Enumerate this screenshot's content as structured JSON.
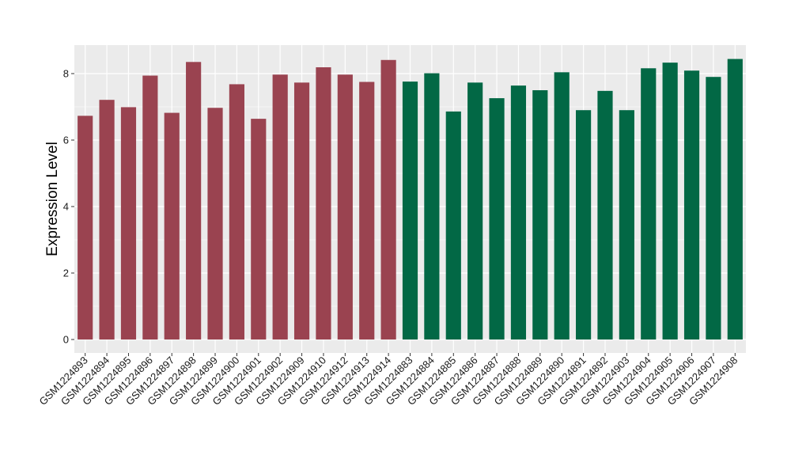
{
  "chart_data": {
    "type": "bar",
    "title": "",
    "xlabel": "",
    "ylabel": "Expression Level",
    "ylim": [
      0,
      8.8
    ],
    "yticks": [
      0,
      2,
      4,
      6,
      8
    ],
    "grid": true,
    "legend": "none",
    "colors": {
      "group1": "#9a4350",
      "group2": "#026845",
      "panel": "#ebebeb",
      "grid": "#ffffff"
    },
    "categories": [
      "GSM1224893",
      "GSM1224894",
      "GSM1224895",
      "GSM1224896",
      "GSM1224897",
      "GSM1224898",
      "GSM1224899",
      "GSM1224900",
      "GSM1224901",
      "GSM1224902",
      "GSM1224909",
      "GSM1224910",
      "GSM1224912",
      "GSM1224913",
      "GSM1224914",
      "GSM1224883",
      "GSM1224884",
      "GSM1224885",
      "GSM1224886",
      "GSM1224887",
      "GSM1224888",
      "GSM1224889",
      "GSM1224890",
      "GSM1224891",
      "GSM1224892",
      "GSM1224903",
      "GSM1224904",
      "GSM1224905",
      "GSM1224906",
      "GSM1224907",
      "GSM1224908"
    ],
    "values": [
      6.73,
      7.21,
      6.99,
      7.94,
      6.82,
      8.35,
      6.97,
      7.68,
      6.64,
      7.97,
      7.73,
      8.19,
      7.97,
      7.75,
      8.41,
      7.76,
      8.01,
      6.86,
      7.73,
      7.26,
      7.64,
      7.5,
      8.04,
      6.9,
      7.48,
      6.9,
      8.16,
      8.33,
      8.09,
      7.9,
      8.44
    ],
    "groups": [
      1,
      1,
      1,
      1,
      1,
      1,
      1,
      1,
      1,
      1,
      1,
      1,
      1,
      1,
      1,
      2,
      2,
      2,
      2,
      2,
      2,
      2,
      2,
      2,
      2,
      2,
      2,
      2,
      2,
      2,
      2
    ]
  }
}
